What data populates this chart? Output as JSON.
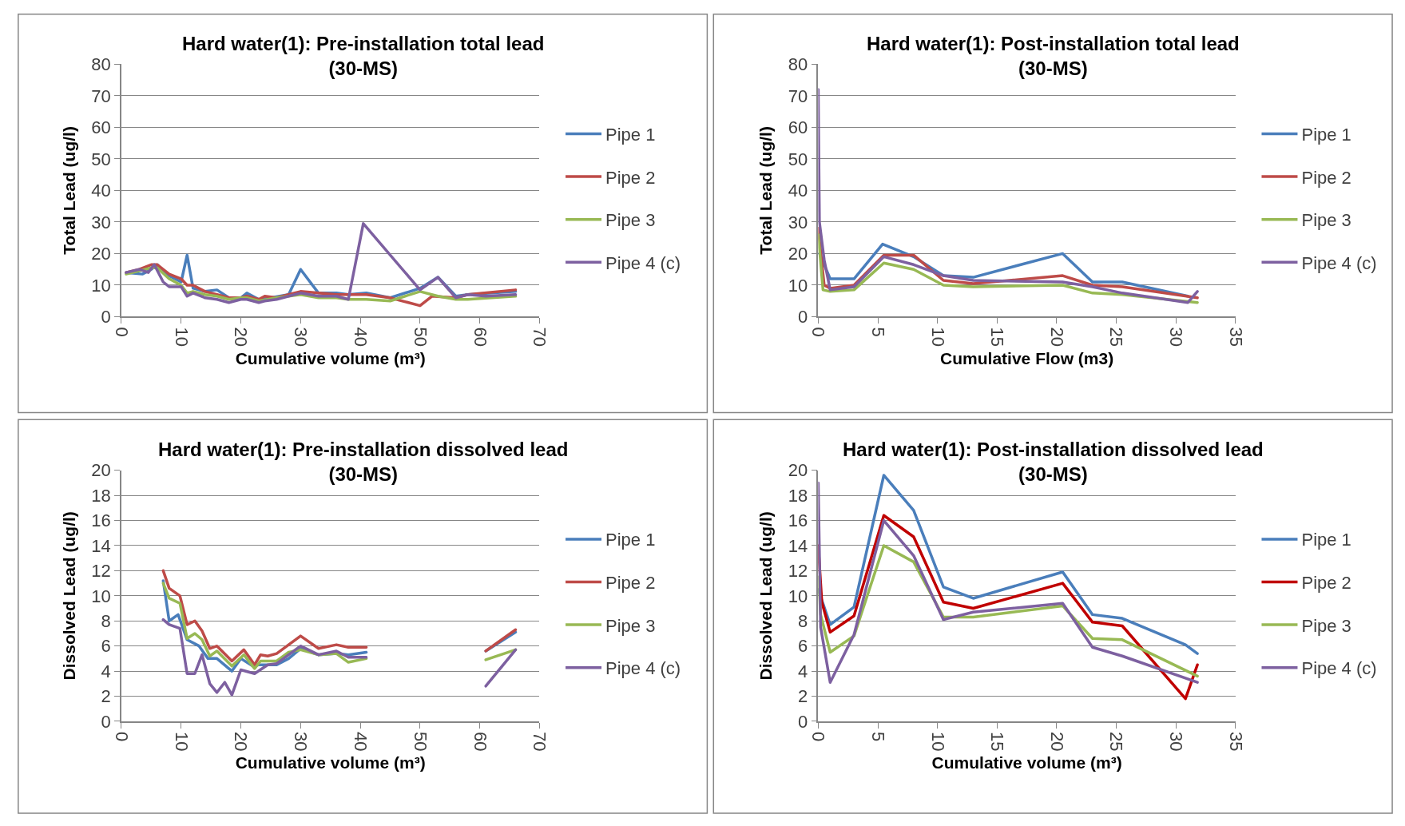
{
  "chart_data": [
    {
      "type": "line",
      "title": "Hard water(1): Pre-installation total lead\n(30-MS)",
      "xlabel": "Cumulative volume (m³)",
      "ylabel": "Total Lead (ug/l)",
      "xlim": [
        0,
        70
      ],
      "xticks": [
        0,
        10,
        20,
        30,
        40,
        50,
        60,
        70
      ],
      "ylim": [
        0,
        80
      ],
      "yticks": [
        0,
        10,
        20,
        30,
        40,
        50,
        60,
        70,
        80
      ],
      "grid": "y",
      "legend": "right",
      "series": [
        {
          "name": "Pipe 1",
          "color": "#4a7ebb",
          "x": [
            0.8,
            3.5,
            5,
            6,
            8,
            10,
            11,
            12,
            14,
            16,
            18,
            20,
            21,
            23,
            25,
            28,
            30,
            33,
            36,
            38,
            41,
            45,
            50,
            53,
            56,
            58,
            66
          ],
          "values": [
            14,
            13.5,
            15,
            16.5,
            13,
            11,
            19.5,
            9,
            8,
            8.5,
            6,
            6,
            7.5,
            5.5,
            6,
            7,
            15,
            7.5,
            7.5,
            7,
            7.5,
            6,
            9,
            12.5,
            6.5,
            7,
            8
          ]
        },
        {
          "name": "Pipe 2",
          "color": "#be4b48",
          "x": [
            0.8,
            3,
            5,
            6,
            8,
            10,
            11,
            12,
            14,
            16,
            18,
            20,
            21,
            23,
            24,
            26,
            28,
            30,
            33,
            36,
            38,
            41,
            45,
            50,
            52,
            56,
            58,
            66
          ],
          "values": [
            14,
            15,
            16.5,
            16.5,
            13.5,
            12,
            10,
            10,
            8,
            7,
            6,
            6,
            6.5,
            5.5,
            6.5,
            6,
            7,
            8,
            7.5,
            7,
            7,
            7,
            6,
            3.5,
            6.5,
            6,
            7,
            8.5
          ]
        },
        {
          "name": "Pipe 3",
          "color": "#98b954",
          "x": [
            0.8,
            3,
            5,
            6,
            8,
            10,
            11,
            12,
            14,
            16,
            18,
            20,
            21,
            23,
            26,
            28,
            30,
            33,
            36,
            38,
            41,
            45,
            50,
            53,
            56,
            58,
            66
          ],
          "values": [
            13.5,
            14.5,
            15.5,
            15.5,
            12,
            10,
            7.5,
            8,
            7,
            6.5,
            5.5,
            6,
            6,
            5,
            6,
            6.5,
            7,
            6,
            6,
            5.5,
            5.5,
            5,
            8,
            6.5,
            5.5,
            5.5,
            6.5
          ]
        },
        {
          "name": "Pipe 4 (c)",
          "color": "#7d60a0",
          "x": [
            0.8,
            3,
            4.5,
            5.5,
            7,
            8,
            10,
            11,
            12,
            14,
            16,
            18,
            20,
            21,
            23,
            24,
            26,
            28,
            30,
            33,
            36,
            38,
            40.5,
            50,
            53,
            56,
            58,
            61,
            66
          ],
          "values": [
            14,
            15,
            14,
            16.5,
            11,
            9.5,
            9.5,
            6.5,
            7.5,
            6,
            5.5,
            4.5,
            5.5,
            5.5,
            4.5,
            5,
            5.5,
            6.5,
            7.5,
            6.5,
            6.5,
            5.5,
            29.5,
            8.5,
            12.5,
            6,
            7,
            6.5,
            7
          ]
        }
      ]
    },
    {
      "type": "line",
      "title": "Hard water(1): Post-installation total lead\n(30-MS)",
      "xlabel": "Cumulative Flow (m3)",
      "ylabel": "Total Lead (ug/l)",
      "xlim": [
        0,
        35
      ],
      "xticks": [
        0,
        5,
        10,
        15,
        20,
        25,
        30,
        35
      ],
      "ylim": [
        0,
        80
      ],
      "yticks": [
        0,
        10,
        20,
        30,
        40,
        50,
        60,
        70,
        80
      ],
      "grid": "y",
      "legend": "right",
      "series": [
        {
          "name": "Pipe 1",
          "color": "#4a7ebb",
          "x": [
            0.1,
            1,
            3,
            5.4,
            8,
            10.5,
            13,
            20.5,
            23,
            25.5,
            31
          ],
          "values": [
            20,
            12,
            12,
            23,
            19,
            13,
            12.5,
            20,
            11,
            11,
            6.5
          ]
        },
        {
          "name": "Pipe 2",
          "color": "#be4b48",
          "x": [
            0,
            0.5,
            1,
            3,
            5.5,
            8,
            10.5,
            13,
            20.5,
            23,
            25.5,
            31.8
          ],
          "values": [
            28,
            10,
            9,
            10,
            19.5,
            19.5,
            11.5,
            10.5,
            13,
            10,
            9.5,
            6
          ]
        },
        {
          "name": "Pipe 3",
          "color": "#98b954",
          "x": [
            0,
            0.4,
            1,
            3,
            5.5,
            8,
            10.5,
            13,
            20.5,
            23,
            25.5,
            31.8
          ],
          "values": [
            26,
            8.5,
            8,
            8.5,
            17,
            15,
            10,
            9.5,
            10,
            7.5,
            7,
            4.5
          ]
        },
        {
          "name": "Pipe 4 (c)",
          "color": "#7d60a0",
          "x": [
            0,
            0.1,
            0.5,
            1,
            3,
            5.5,
            8,
            10.5,
            13,
            20.5,
            23,
            25.5,
            31,
            31.8
          ],
          "values": [
            72,
            30,
            18,
            8.5,
            9.5,
            19,
            16.5,
            13,
            11.5,
            11,
            9.5,
            7.5,
            4.5,
            8
          ]
        }
      ]
    },
    {
      "type": "line",
      "title": "Hard water(1): Pre-installation dissolved lead\n(30-MS)",
      "xlabel": "Cumulative volume (m³)",
      "ylabel": "Dissolved Lead (ug/l)",
      "xlim": [
        0,
        70
      ],
      "xticks": [
        0,
        10,
        20,
        30,
        40,
        50,
        60,
        70
      ],
      "ylim": [
        0,
        20
      ],
      "yticks": [
        0,
        2,
        4,
        6,
        8,
        10,
        12,
        14,
        16,
        18,
        20
      ],
      "grid": "y",
      "legend": "right",
      "series": [
        {
          "name": "Pipe 1",
          "color": "#4a7ebb",
          "x": [
            7,
            8,
            9.5,
            11,
            13,
            14.5,
            16,
            18.5,
            20,
            22,
            23,
            25,
            26,
            28,
            30,
            33,
            36,
            38,
            41,
            null,
            61,
            66
          ],
          "values": [
            11.2,
            8,
            8.5,
            6.5,
            6,
            5,
            5,
            4,
            5,
            4.4,
            4.5,
            4.5,
            4.5,
            5,
            5.8,
            5.3,
            5.4,
            5.3,
            5.5,
            null,
            5.6,
            7.1
          ]
        },
        {
          "name": "Pipe 2",
          "color": "#be4b48",
          "x": [
            7,
            8,
            9.8,
            11,
            12.3,
            13.5,
            14.8,
            16,
            18.5,
            20.5,
            22.3,
            23.3,
            24.5,
            26,
            28,
            30,
            33,
            36,
            38,
            41,
            null,
            61,
            66
          ],
          "values": [
            12,
            10.6,
            10,
            7.7,
            8,
            7.2,
            5.8,
            6,
            4.8,
            5.7,
            4.5,
            5.3,
            5.2,
            5.4,
            6.1,
            6.8,
            5.8,
            6.1,
            5.9,
            5.9,
            null,
            5.6,
            7.3
          ]
        },
        {
          "name": "Pipe 3",
          "color": "#98b954",
          "x": [
            7,
            8,
            9.8,
            11,
            12.3,
            13.5,
            14.8,
            16,
            18.5,
            20.5,
            22.3,
            23.3,
            26,
            28,
            30,
            33,
            36,
            38,
            41,
            null,
            61,
            66
          ],
          "values": [
            11,
            9.8,
            9.4,
            6.6,
            7,
            6.5,
            5.2,
            5.6,
            4.4,
            5.3,
            4.2,
            4.8,
            4.8,
            5.5,
            5.7,
            5.3,
            5.4,
            4.7,
            5,
            null,
            4.9,
            5.7
          ]
        },
        {
          "name": "Pipe 4 (c)",
          "color": "#7d60a0",
          "x": [
            7,
            8,
            9.8,
            11,
            12.3,
            13.5,
            14.8,
            16,
            17.3,
            18.5,
            20,
            22.3,
            24.5,
            26,
            28,
            30,
            33,
            36,
            38,
            41,
            null,
            61,
            66
          ],
          "values": [
            8.1,
            7.7,
            7.4,
            3.8,
            3.8,
            5.3,
            3,
            2.3,
            3.1,
            2.1,
            4.1,
            3.8,
            4.5,
            4.6,
            5.3,
            6,
            5.3,
            5.6,
            5.1,
            5.1,
            null,
            2.8,
            5.7
          ]
        }
      ]
    },
    {
      "type": "line",
      "title": "Hard water(1): Post-installation dissolved lead\n(30-MS)",
      "xlabel": "Cumulative volume (m³)",
      "ylabel": "Dissolved Lead (ug/l)",
      "xlim": [
        0,
        35
      ],
      "xticks": [
        0,
        5,
        10,
        15,
        20,
        25,
        30,
        35
      ],
      "ylim": [
        0,
        20
      ],
      "yticks": [
        0,
        2,
        4,
        6,
        8,
        10,
        12,
        14,
        16,
        18,
        20
      ],
      "grid": "y",
      "legend": "right",
      "series": [
        {
          "name": "Pipe 1",
          "color": "#4a7ebb",
          "x": [
            0,
            1,
            3,
            5.5,
            8,
            10.5,
            13,
            20.5,
            23,
            25.5,
            30.8,
            31.8
          ],
          "values": [
            10.5,
            7.7,
            9.1,
            19.6,
            16.8,
            10.7,
            9.8,
            11.9,
            8.5,
            8.2,
            6.1,
            5.4
          ]
        },
        {
          "name": "Pipe 2",
          "color": "#c00000",
          "x": [
            0,
            0.3,
            1,
            3,
            5.5,
            8,
            10.5,
            13,
            20.5,
            23,
            25.5,
            30.8,
            31.8
          ],
          "values": [
            14,
            9.5,
            7.1,
            8.4,
            16.4,
            14.7,
            9.5,
            9,
            11,
            7.9,
            7.6,
            1.8,
            4.5
          ]
        },
        {
          "name": "Pipe 3",
          "color": "#98b954",
          "x": [
            0,
            0.2,
            1,
            3,
            5.5,
            8,
            10.5,
            13,
            20.5,
            23,
            25.5,
            31.8
          ],
          "values": [
            11.5,
            8.5,
            5.5,
            6.8,
            14,
            12.7,
            8.3,
            8.3,
            9.2,
            6.6,
            6.5,
            3.6
          ]
        },
        {
          "name": "Pipe 4 (c)",
          "color": "#7d60a0",
          "x": [
            0,
            0.2,
            1,
            3,
            5.5,
            8,
            10.5,
            13,
            20.5,
            23,
            25.5,
            31.8
          ],
          "values": [
            19,
            7.5,
            3.1,
            6.9,
            16,
            13.2,
            8.1,
            8.7,
            9.4,
            5.9,
            5.2,
            3.1
          ]
        }
      ]
    }
  ]
}
